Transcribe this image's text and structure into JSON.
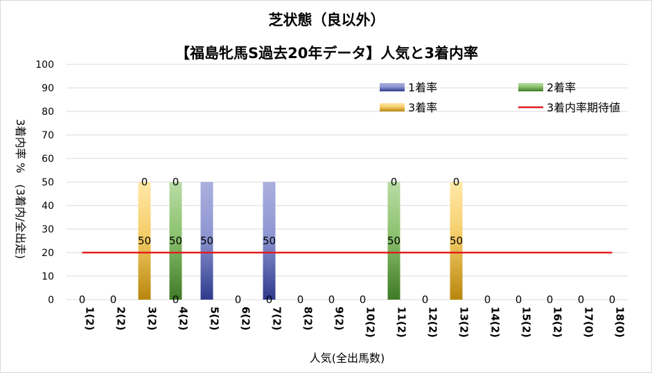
{
  "chart_data": {
    "type": "bar",
    "stacked": true,
    "title_line1": "芝状態（良以外）",
    "title_line2": "【福島牝馬S過去20年データ】人気と3着内率",
    "xlabel": "人気(全出馬数)",
    "ylabel": "3着内率 %　(3着内/全出走)",
    "ylim": [
      0,
      100
    ],
    "yticks": [
      0,
      10,
      20,
      30,
      40,
      50,
      60,
      70,
      80,
      90,
      100
    ],
    "grid": true,
    "legend_position": "top-right",
    "categories": [
      "1(2)",
      "2(2)",
      "3(2)",
      "4(2)",
      "5(2)",
      "6(2)",
      "7(2)",
      "8(2)",
      "9(2)",
      "10(2)",
      "11(2)",
      "12(2)",
      "13(2)",
      "14(2)",
      "15(2)",
      "16(2)",
      "17(0)",
      "18(0)"
    ],
    "series": [
      {
        "name": "1着率",
        "values": [
          0,
          0,
          0,
          0,
          50,
          0,
          50,
          0,
          0,
          0,
          0,
          0,
          0,
          0,
          0,
          0,
          0,
          0
        ],
        "color": "#4a55a8"
      },
      {
        "name": "2着率",
        "values": [
          0,
          0,
          0,
          50,
          0,
          0,
          0,
          0,
          0,
          0,
          50,
          0,
          0,
          0,
          0,
          0,
          0,
          0
        ],
        "color": "#5a9a3f"
      },
      {
        "name": "3着率",
        "values": [
          0,
          0,
          50,
          0,
          0,
          0,
          0,
          0,
          0,
          0,
          0,
          0,
          50,
          0,
          0,
          0,
          0,
          0
        ],
        "color": "#e0a82c"
      }
    ],
    "expected_line": {
      "name": "3着内率期待値",
      "value": 20,
      "color": "#e41a1c"
    },
    "bar_labels": [
      {
        "category": 0,
        "y": 0,
        "text": "0"
      },
      {
        "category": 1,
        "y": 0,
        "text": "0"
      },
      {
        "category": 2,
        "y": 50,
        "text": "0"
      },
      {
        "category": 2,
        "y": 25,
        "text": "50"
      },
      {
        "category": 3,
        "y": 50,
        "text": "0"
      },
      {
        "category": 3,
        "y": 25,
        "text": "50"
      },
      {
        "category": 3,
        "y": 0,
        "text": "0"
      },
      {
        "category": 4,
        "y": 25,
        "text": "50"
      },
      {
        "category": 5,
        "y": 0,
        "text": "0"
      },
      {
        "category": 6,
        "y": 25,
        "text": "50"
      },
      {
        "category": 6,
        "y": 0,
        "text": "0"
      },
      {
        "category": 7,
        "y": 0,
        "text": "0"
      },
      {
        "category": 8,
        "y": 0,
        "text": "0"
      },
      {
        "category": 9,
        "y": 0,
        "text": "0"
      },
      {
        "category": 10,
        "y": 50,
        "text": "0"
      },
      {
        "category": 10,
        "y": 25,
        "text": "50"
      },
      {
        "category": 11,
        "y": 0,
        "text": "0"
      },
      {
        "category": 12,
        "y": 50,
        "text": "0"
      },
      {
        "category": 12,
        "y": 25,
        "text": "50"
      },
      {
        "category": 13,
        "y": 0,
        "text": "0"
      },
      {
        "category": 14,
        "y": 0,
        "text": "0"
      },
      {
        "category": 15,
        "y": 0,
        "text": "0"
      },
      {
        "category": 16,
        "y": 0,
        "text": "0"
      },
      {
        "category": 17,
        "y": 0,
        "text": "0"
      }
    ]
  }
}
